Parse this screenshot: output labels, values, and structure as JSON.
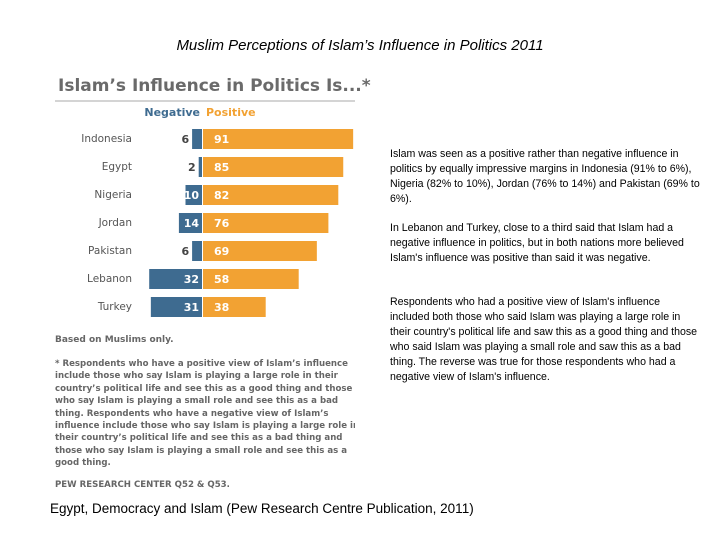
{
  "slide_title": "Muslim Perceptions of Islam’s Influence in Politics 2011",
  "paragraphs": [
    "Islam was seen as a positive rather than negative influence in politics by equally impressive margins in Indonesia (91% to 6%), Nigeria (82% to 10%), Jordan (76% to 14%) and Pakistan (69% to 6%).",
    "In Lebanon and Turkey, close to a third said that Islam had a negative influence in politics, but in both nations more believed Islam's influence was positive than said it was negative.",
    "Respondents who had a positive view of Islam's influence included both those who said Islam was playing a large role in their country's political life and saw this as a good thing and those who said Islam was playing a small role and saw this as a bad thing. The reverse was true for those respondents who had a negative view of Islam's influence."
  ],
  "caption": "Egypt, Democracy and Islam (Pew Research Centre Publication, 2011)",
  "chart_data": {
    "type": "bar",
    "title": "Islam’s Influence in Politics Is...*",
    "categories": [
      "Indonesia",
      "Egypt",
      "Nigeria",
      "Jordan",
      "Pakistan",
      "Lebanon",
      "Turkey"
    ],
    "series": [
      {
        "name": "Negative",
        "color": "#3e6b90",
        "values": [
          6,
          2,
          10,
          14,
          6,
          32,
          31
        ]
      },
      {
        "name": "Positive",
        "color": "#f2a233",
        "values": [
          91,
          85,
          82,
          76,
          69,
          58,
          38
        ]
      }
    ],
    "notes": [
      "Based on Muslims only.",
      "* Respondents who have a positive view of Islam’s influence include those who say Islam is playing a large role in their country’s political life and see this as a good thing and those who say Islam is playing a small role and see this as a bad thing. Respondents who have a negative view of Islam’s influence include those who say Islam is playing a large role in their country’s political life and see this as a bad thing and those who say Islam is playing a small role and see this as a good thing."
    ],
    "source": "PEW RESEARCH CENTER Q52 & Q53."
  }
}
